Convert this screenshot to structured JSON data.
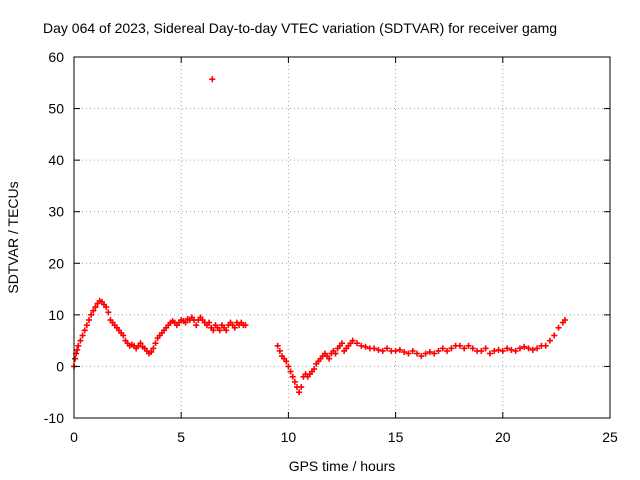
{
  "chart_data": {
    "type": "scatter",
    "title": "Day 064 of 2023, Sidereal Day-to-day VTEC variation (SDTVAR) for receiver gamg",
    "xlabel": "GPS time / hours",
    "ylabel": "SDTVAR / TECUs",
    "xlim": [
      0,
      25
    ],
    "ylim": [
      -10,
      60
    ],
    "xticks": [
      0,
      5,
      10,
      15,
      20,
      25
    ],
    "yticks": [
      -10,
      0,
      10,
      20,
      30,
      40,
      50,
      60
    ],
    "xtick_labels": [
      "0",
      "5",
      "10",
      "15",
      "20",
      "25"
    ],
    "ytick_labels": [
      "-10",
      "0",
      "10",
      "20",
      "30",
      "40",
      "50",
      "60"
    ],
    "grid": true,
    "legend": "none",
    "marker": "plus",
    "series": [
      {
        "name": "SDTVAR",
        "color": "#ff0000",
        "x": [
          0.0,
          0.05,
          0.1,
          0.15,
          0.2,
          0.3,
          0.4,
          0.5,
          0.6,
          0.7,
          0.8,
          0.9,
          1.0,
          1.1,
          1.2,
          1.3,
          1.4,
          1.5,
          1.6,
          1.7,
          1.8,
          1.9,
          2.0,
          2.1,
          2.2,
          2.3,
          2.4,
          2.5,
          2.6,
          2.7,
          2.8,
          2.9,
          3.0,
          3.1,
          3.2,
          3.3,
          3.4,
          3.5,
          3.6,
          3.7,
          3.8,
          3.9,
          4.0,
          4.1,
          4.2,
          4.3,
          4.4,
          4.5,
          4.6,
          4.7,
          4.8,
          4.9,
          5.0,
          5.1,
          5.2,
          5.3,
          5.4,
          5.5,
          5.6,
          5.7,
          5.8,
          5.9,
          6.0,
          6.1,
          6.2,
          6.3,
          6.4,
          6.5,
          6.6,
          6.7,
          6.8,
          6.9,
          7.0,
          7.1,
          7.2,
          7.3,
          7.4,
          7.5,
          7.6,
          7.7,
          7.8,
          7.9,
          8.0,
          6.45,
          9.5,
          9.6,
          9.7,
          9.8,
          9.9,
          10.0,
          10.1,
          10.2,
          10.3,
          10.4,
          10.5,
          10.6,
          10.7,
          10.8,
          10.9,
          11.0,
          11.1,
          11.2,
          11.3,
          11.4,
          11.5,
          11.6,
          11.7,
          11.8,
          11.9,
          12.0,
          12.1,
          12.2,
          12.3,
          12.4,
          12.5,
          12.6,
          12.7,
          12.8,
          12.9,
          13.0,
          13.2,
          13.4,
          13.6,
          13.8,
          14.0,
          14.2,
          14.4,
          14.6,
          14.8,
          15.0,
          15.2,
          15.4,
          15.6,
          15.8,
          16.0,
          16.2,
          16.4,
          16.6,
          16.8,
          17.0,
          17.2,
          17.4,
          17.6,
          17.8,
          18.0,
          18.2,
          18.4,
          18.6,
          18.8,
          19.0,
          19.2,
          19.4,
          19.6,
          19.8,
          20.0,
          20.2,
          20.4,
          20.6,
          20.8,
          21.0,
          21.2,
          21.4,
          21.6,
          21.8,
          22.0,
          22.2,
          22.4,
          22.6,
          22.8,
          22.9
        ],
        "y": [
          0.0,
          1.5,
          2.5,
          3.2,
          4.0,
          5.0,
          6.0,
          7.0,
          8.0,
          9.0,
          10.0,
          10.8,
          11.5,
          12.2,
          12.7,
          12.5,
          12.0,
          11.5,
          10.5,
          9.0,
          8.5,
          8.0,
          7.5,
          7.0,
          6.5,
          6.0,
          5.0,
          4.5,
          4.0,
          4.2,
          4.0,
          3.5,
          4.0,
          4.5,
          3.8,
          3.5,
          3.0,
          2.5,
          2.8,
          3.5,
          4.5,
          5.5,
          6.0,
          6.5,
          7.0,
          7.5,
          8.0,
          8.5,
          8.8,
          8.5,
          8.0,
          8.5,
          9.0,
          8.8,
          8.5,
          9.2,
          9.0,
          9.5,
          9.0,
          8.0,
          9.0,
          9.5,
          9.0,
          8.5,
          8.0,
          8.5,
          7.5,
          7.0,
          8.0,
          7.5,
          7.0,
          8.0,
          7.5,
          7.0,
          8.0,
          8.5,
          8.0,
          7.5,
          8.5,
          8.0,
          8.5,
          8.0,
          8.0,
          55.7,
          4.0,
          3.0,
          2.0,
          1.5,
          1.0,
          0.0,
          -1.0,
          -2.0,
          -3.0,
          -4.0,
          -5.0,
          -4.0,
          -2.0,
          -1.5,
          -2.0,
          -1.5,
          -1.0,
          -0.5,
          0.5,
          1.0,
          1.5,
          2.0,
          2.5,
          2.0,
          1.5,
          2.5,
          3.0,
          2.5,
          3.5,
          4.0,
          4.5,
          3.0,
          3.5,
          4.0,
          4.5,
          5.0,
          4.5,
          4.0,
          3.8,
          3.5,
          3.5,
          3.2,
          3.0,
          3.5,
          3.0,
          3.0,
          3.2,
          2.8,
          2.5,
          3.0,
          2.5,
          2.0,
          2.5,
          2.8,
          2.5,
          3.0,
          3.5,
          3.0,
          3.5,
          4.0,
          4.0,
          3.5,
          4.0,
          3.5,
          3.0,
          3.0,
          3.5,
          2.5,
          3.0,
          3.2,
          3.0,
          3.5,
          3.2,
          3.0,
          3.5,
          3.8,
          3.5,
          3.2,
          3.5,
          4.0,
          4.0,
          5.0,
          6.0,
          7.5,
          8.5,
          9.0
        ]
      }
    ]
  }
}
